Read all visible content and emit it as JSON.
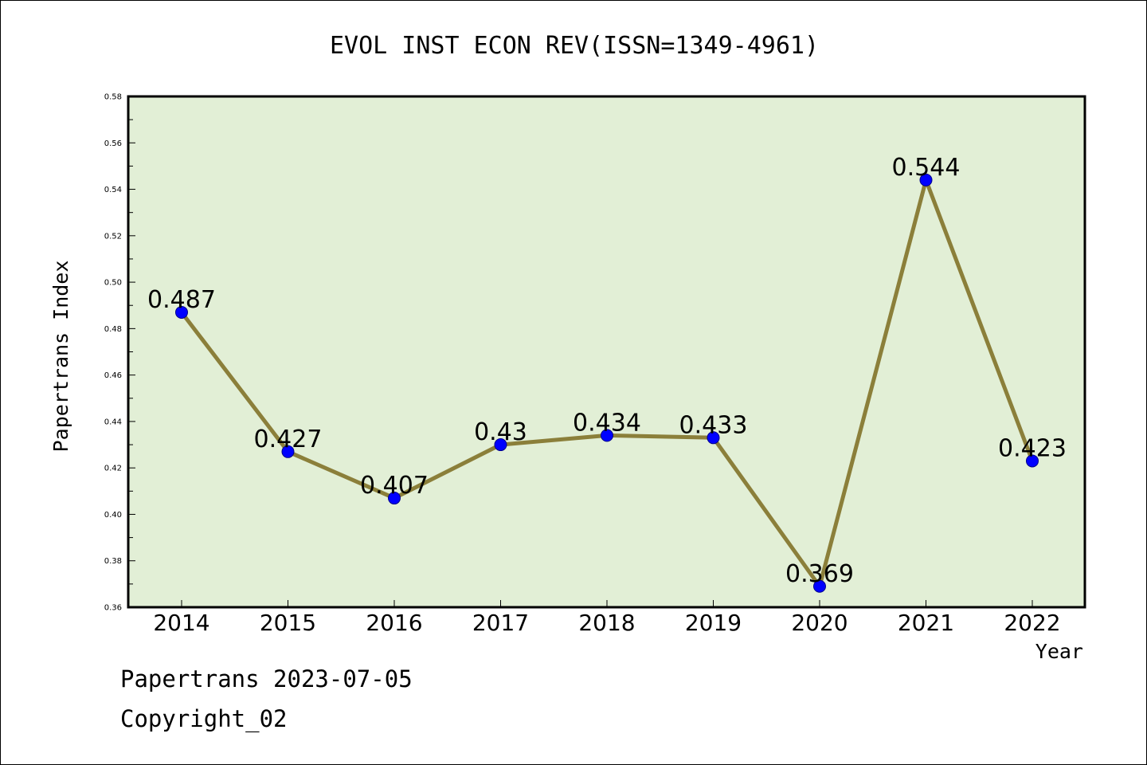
{
  "chart_data": {
    "type": "line",
    "title": "EVOL INST ECON REV(ISSN=1349-4961)",
    "xlabel": "Year",
    "ylabel": "Papertrans Index",
    "categories": [
      "2014",
      "2015",
      "2016",
      "2017",
      "2018",
      "2019",
      "2020",
      "2021",
      "2022"
    ],
    "values": [
      0.487,
      0.427,
      0.407,
      0.43,
      0.434,
      0.433,
      0.369,
      0.544,
      0.423
    ],
    "data_labels": [
      "0.487",
      "0.427",
      "0.407",
      "0.43",
      "0.434",
      "0.433",
      "0.369",
      "0.544",
      "0.423"
    ],
    "ylim": [
      0.36,
      0.58
    ],
    "yticks": [
      "0.36",
      "0.38",
      "0.40",
      "0.42",
      "0.44",
      "0.46",
      "0.48",
      "0.50",
      "0.52",
      "0.54",
      "0.56",
      "0.58"
    ],
    "grid": false,
    "legend": "none",
    "colors": {
      "plot_background": "#e2efd6",
      "line": "#8b7f3a",
      "marker": "#0000ff"
    }
  },
  "footer": {
    "line1": "Papertrans 2023-07-05",
    "line2": "Copyright_02"
  }
}
